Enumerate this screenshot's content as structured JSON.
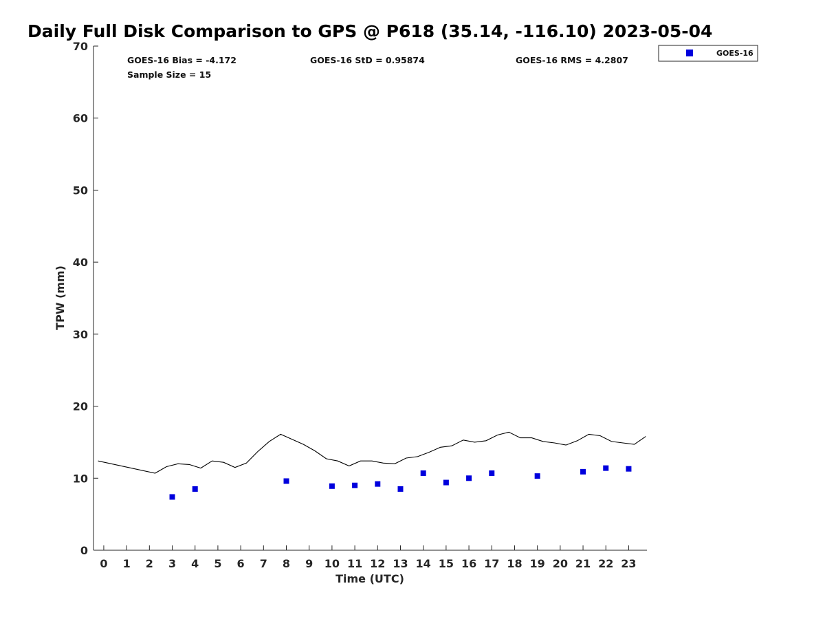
{
  "chart_data": {
    "type": "scatter",
    "title": "Daily Full Disk Comparison to GPS @ P618 (35.14, -116.10) 2023-05-04",
    "xlabel": "Time (UTC)",
    "ylabel": "TPW (mm)",
    "xlim": [
      -0.45,
      23.8
    ],
    "ylim": [
      0,
      70
    ],
    "x_ticks": [
      0,
      1,
      2,
      3,
      4,
      5,
      6,
      7,
      8,
      9,
      10,
      11,
      12,
      13,
      14,
      15,
      16,
      17,
      18,
      19,
      20,
      21,
      22,
      23
    ],
    "y_ticks": [
      0,
      10,
      20,
      30,
      40,
      50,
      60,
      70
    ],
    "grid": false,
    "legend_position": "top-right, outside plot",
    "stats": {
      "bias": "GOES-16 Bias = -4.172",
      "std": "GOES-16 StD = 0.95874",
      "rms": "GOES-16 RMS = 4.2807",
      "sample": "Sample Size = 15"
    },
    "series": [
      {
        "name": "GOES-16",
        "kind": "markers",
        "marker": "square",
        "color": "#0000dd",
        "x": [
          3,
          4,
          8,
          10,
          11,
          12,
          13,
          14,
          15,
          16,
          17,
          19,
          21,
          22,
          23
        ],
        "y": [
          7.4,
          8.5,
          9.6,
          8.9,
          9.0,
          9.2,
          8.5,
          10.7,
          9.4,
          10.0,
          10.7,
          10.3,
          10.9,
          11.4,
          11.3
        ]
      },
      {
        "kind": "line",
        "color": "#000000",
        "x": [
          -0.25,
          2.25,
          2.75,
          3.25,
          3.75,
          4.25,
          4.75,
          5.25,
          5.75,
          6.25,
          6.75,
          7.25,
          7.75,
          8.25,
          8.75,
          9.25,
          9.75,
          10.25,
          10.75,
          11.25,
          11.75,
          12.25,
          12.75,
          13.25,
          13.75,
          14.25,
          14.75,
          15.25,
          15.75,
          16.25,
          16.75,
          17.25,
          17.75,
          18.25,
          18.75,
          19.25,
          19.75,
          20.25,
          20.75,
          21.25,
          21.75,
          22.25,
          22.75,
          23.25,
          23.75
        ],
        "y": [
          12.4,
          10.7,
          11.6,
          12.0,
          11.9,
          11.4,
          12.4,
          12.2,
          11.5,
          12.1,
          13.7,
          15.1,
          16.1,
          15.4,
          14.7,
          13.8,
          12.7,
          12.4,
          11.7,
          12.4,
          12.4,
          12.1,
          12.0,
          12.8,
          13.0,
          13.6,
          14.3,
          14.5,
          15.3,
          15.0,
          15.2,
          16.0,
          16.4,
          15.6,
          15.6,
          15.1,
          14.9,
          14.6,
          15.2,
          16.1,
          15.9,
          15.1,
          14.9,
          14.7,
          15.8
        ]
      }
    ]
  }
}
